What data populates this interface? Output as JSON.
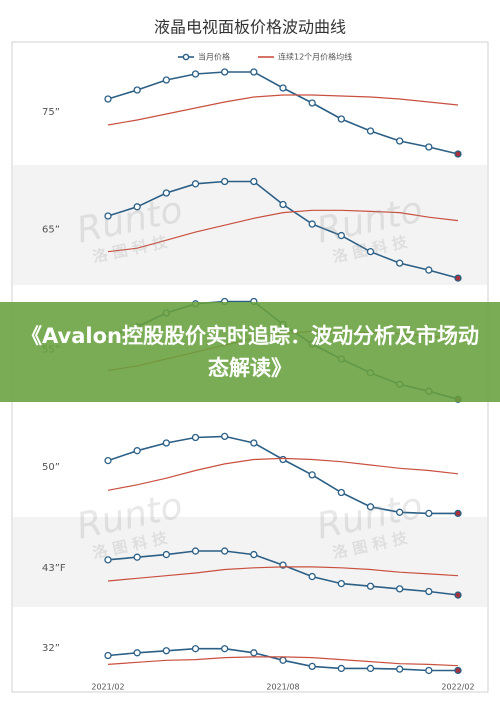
{
  "header": {
    "title": "液晶电视面板价格波动曲线"
  },
  "legend": [
    {
      "name": "当月价格",
      "color": "#2b5f86"
    },
    {
      "name": "连续12个月价格均线",
      "color": "#c9503f"
    }
  ],
  "x_axis": {
    "categories": [
      "2021/02",
      null,
      null,
      null,
      null,
      null,
      "2021/08",
      null,
      null,
      null,
      null,
      null,
      "2022/02"
    ]
  },
  "last_point_color": "#a8323a",
  "watermark": {
    "brand": "Runto",
    "cn": "洛 图 科 技"
  },
  "banner": {
    "text": "《Avalon控股股价实时追踪：波动分析及市场动态解读》"
  },
  "chart_data": [
    {
      "type": "line",
      "label": "75”",
      "ylim": [
        0,
        100
      ],
      "series": [
        {
          "color": "#2b5f86",
          "values": [
            61,
            70,
            80,
            86,
            88,
            88,
            72,
            57,
            41,
            29,
            19,
            13,
            6
          ]
        },
        {
          "color": "#c9503f",
          "values": [
            35,
            40,
            46,
            52,
            58,
            63,
            65,
            65,
            64,
            63,
            61,
            58,
            55
          ]
        }
      ]
    },
    {
      "type": "line",
      "label": "65”",
      "ylim": [
        0,
        100
      ],
      "series": [
        {
          "color": "#2b5f86",
          "values": [
            60,
            68,
            80,
            88,
            90,
            90,
            70,
            53,
            43,
            29,
            19,
            13,
            6
          ]
        },
        {
          "color": "#c9503f",
          "values": [
            29,
            32,
            39,
            46,
            52,
            58,
            63,
            65,
            65,
            64,
            63,
            59,
            56
          ]
        }
      ]
    },
    {
      "type": "line",
      "label": "55”",
      "ylim": [
        0,
        100
      ],
      "series": [
        {
          "color": "#2b5f86",
          "values": [
            60,
            68,
            80,
            88,
            90,
            90,
            70,
            53,
            40,
            28,
            18,
            12,
            5
          ]
        },
        {
          "color": "#c9503f",
          "values": [
            30,
            34,
            40,
            46,
            52,
            58,
            62,
            64,
            64,
            63,
            62,
            60,
            57
          ]
        }
      ]
    },
    {
      "type": "line",
      "label": "50”",
      "ylim": [
        0,
        100
      ],
      "series": [
        {
          "color": "#2b5f86",
          "values": [
            54,
            63,
            70,
            75,
            76,
            70,
            55,
            41,
            25,
            12,
            7,
            6,
            6
          ]
        },
        {
          "color": "#c9503f",
          "values": [
            27,
            32,
            38,
            45,
            51,
            55,
            56,
            55,
            53,
            50,
            47,
            45,
            42
          ]
        }
      ]
    },
    {
      "type": "line",
      "label": "43”F",
      "ylim": [
        0,
        100
      ],
      "series": [
        {
          "color": "#2b5f86",
          "values": [
            57,
            60,
            63,
            67,
            67,
            63,
            51,
            38,
            30,
            27,
            24,
            21,
            17
          ]
        },
        {
          "color": "#c9503f",
          "values": [
            33,
            36,
            39,
            42,
            46,
            48,
            49,
            49,
            48,
            46,
            43,
            41,
            39
          ]
        }
      ]
    },
    {
      "type": "line",
      "label": "32”",
      "ylim": [
        0,
        100
      ],
      "series": [
        {
          "color": "#2b5f86",
          "values": [
            36,
            40,
            43,
            46,
            46,
            40,
            29,
            20,
            17,
            17,
            16,
            14,
            14
          ]
        },
        {
          "color": "#c9503f",
          "values": [
            23,
            26,
            29,
            30,
            33,
            34,
            34,
            33,
            30,
            27,
            24,
            23,
            21
          ]
        }
      ]
    }
  ]
}
